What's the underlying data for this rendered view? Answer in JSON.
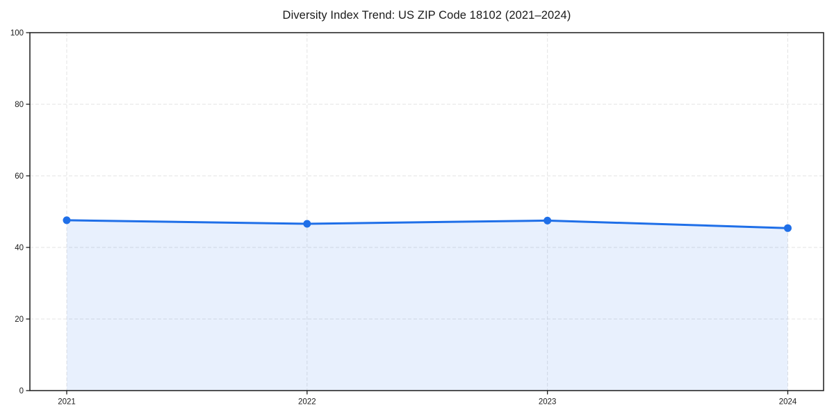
{
  "title": "Diversity Index Trend: US ZIP Code 18102 (2021–2024)",
  "chart_data": {
    "type": "area",
    "title": "Diversity Index Trend: US ZIP Code 18102 (2021–2024)",
    "categories": [
      "2021",
      "2022",
      "2023",
      "2024"
    ],
    "series": [
      {
        "name": "Diversity Index",
        "values": [
          47.6,
          46.6,
          47.5,
          45.4
        ]
      }
    ],
    "xlabel": "",
    "ylabel": "",
    "ylim": [
      0,
      100
    ],
    "yticks": [
      0,
      20,
      40,
      60,
      80,
      100
    ],
    "grid": true,
    "grid_style": "dashed",
    "legend": false,
    "colors": {
      "line": "#1f6fe8",
      "marker": "#1f6fe8",
      "fill": "rgba(31,111,232,0.10)",
      "grid": "#e3e3e3",
      "axis": "#1a1a1a",
      "text": "#1a1a1a",
      "background": "#ffffff"
    }
  }
}
